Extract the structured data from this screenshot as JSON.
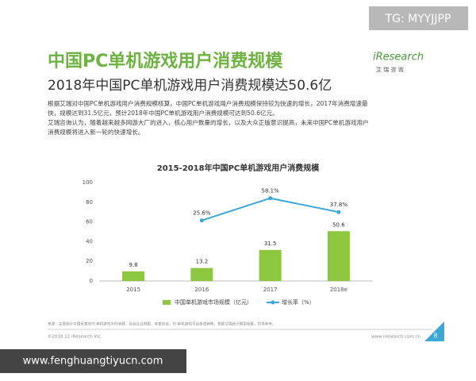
{
  "watermark_top": "TG: MYYJJPP",
  "header": {
    "title": "中国PC单机游戏用户消费规模",
    "logo": "iResearch",
    "logo_sub": "艾 瑞 咨 询",
    "subtitle": "2018年中国PC单机游戏用户消费规模达50.6亿"
  },
  "paragraph": [
    "根据艾瑞对中国PC单机游戏用户消费规模核算，中国PC单机游戏用户消费规模保持较为快速的增长，2017年消费增速最",
    "快，规模达到31.5亿元，预计2018年中国PC单机游戏用户消费规模可达到50.6亿元。",
    "艾瑞咨询认为，随着越来越多网游大厂的进入，核心用户数量的增长，以及大众正版意识提高，未来中国PC单机游戏用户",
    "消费规模将进入新一轮的快速增长。"
  ],
  "chart_data": {
    "type": "bar-line",
    "title": "2015-2018年中国PC单机游戏用户消费规模",
    "categories": [
      "2015",
      "2016",
      "2017",
      "2018e"
    ],
    "series": [
      {
        "name": "中国单机游戏市场规模（亿元）",
        "type": "bar",
        "color": "#8dc63f",
        "values": [
          9.8,
          13.2,
          31.5,
          50.6
        ]
      },
      {
        "name": "增长率（%）",
        "type": "line",
        "axis": "y2",
        "color": "#3aa8d8",
        "values": [
          null,
          25.6,
          58.1,
          37.8
        ],
        "value_labels": [
          null,
          "25.6%",
          "58.1%",
          "37.8%"
        ]
      }
    ],
    "ylim": [
      0,
      100
    ],
    "yticks": [
      0,
      20,
      40,
      60,
      80,
      100
    ],
    "y2lim": [
      -63,
      81
    ],
    "grid": false,
    "legend": "bottom"
  },
  "footer": {
    "source": "来源：主要统计中国玩家在PC单机游戏中的消费，综合企业财报、专家访谈，PC单机游戏平台渠道销售，根据艾瑞统计模型核算，仅供参考。",
    "copyright": "©2018.12 iResearch Inc.",
    "site": "www.iresearch.com.cn",
    "page": "8"
  },
  "watermark_bottom": "www.fenghuangtiyucn.com"
}
